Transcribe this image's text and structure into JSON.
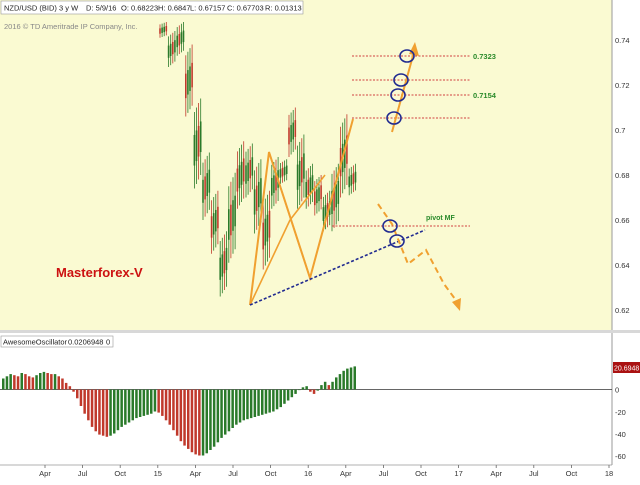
{
  "header": {
    "symbol": "NZD/USD (BID) 3 y W",
    "date": "D: 5/9/16",
    "open": "O: 0.68223",
    "high": "H: 0.6847",
    "low": "L: 0.67157",
    "close": "C: 0.67703",
    "range": "R: 0.01313",
    "copyright": "2016 © TD Ameritrade IP Company, Inc."
  },
  "annotations": {
    "watermark": "Masterforex-V",
    "pivot_label": "pivot MF",
    "target_1": "0.7323",
    "target_2": "0.7154"
  },
  "oscillator_header": {
    "name": "AwesomeOscillator",
    "value": "0.0206948",
    "zero": "0",
    "current_tag": "20.6948"
  },
  "colors": {
    "price_panel_bg": "#fafad2",
    "up_bar": "#2a7a2a",
    "down_bar": "#c0392b",
    "zigzag": "#f0a030",
    "trendline": "#202a90",
    "level_line": "#d04040",
    "level_label": "#2a8a2a",
    "watermark": "#cc1111",
    "value_tag": "#aa1111"
  },
  "chart_data": [
    {
      "type": "candlestick",
      "title": "NZD/USD (BID) 3 y W",
      "x_ticks": [
        "Apr",
        "Jul",
        "Oct",
        "15",
        "Apr",
        "Jul",
        "Oct",
        "16",
        "Apr",
        "Jul",
        "Oct",
        "17",
        "Apr",
        "Jul",
        "Oct",
        "18"
      ],
      "y_ticks": [
        "0.74",
        "0.72",
        "0.7",
        "0.68",
        "0.66",
        "0.64",
        "0.62"
      ],
      "ylim": [
        0.61,
        0.745
      ],
      "grid": false,
      "series": [
        {
          "name": "",
          "lows": [
            0.741,
            0.728,
            0.733,
            0.706,
            0.674,
            0.66,
            0.645,
            0.626,
            0.641,
            0.665,
            0.67,
            0.654,
            0.638,
            0.665,
            0.676,
            0.688,
            0.665,
            0.665,
            0.662,
            0.655,
            0.655,
            0.67,
            0.671
          ],
          "highs": [
            0.748,
            0.744,
            0.748,
            0.738,
            0.714,
            0.69,
            0.673,
            0.655,
            0.681,
            0.695,
            0.694,
            0.687,
            0.673,
            0.688,
            0.687,
            0.71,
            0.698,
            0.685,
            0.68,
            0.673,
            0.685,
            0.707,
            0.685
          ],
          "note": "weekly OHLC values aggregated per visible cluster (approximate)"
        }
      ],
      "annotations": {
        "target_levels": [
          0.7323,
          0.7154
        ],
        "extra_levels": [
          0.722,
          0.705
        ],
        "pivot_mf_level": 0.657
      }
    },
    {
      "type": "bar",
      "title": "AwesomeOscillator",
      "y_ticks": [
        "20.6948",
        "0",
        "-20",
        "-40",
        "-60"
      ],
      "ylim": [
        -67,
        27
      ],
      "last_value": 20.6948,
      "series": [
        {
          "name": "",
          "values": [
            10,
            12,
            14,
            13,
            12,
            15,
            14,
            12,
            11,
            13,
            15,
            16,
            15,
            14,
            14,
            12,
            10,
            6,
            3,
            -2,
            -8,
            -15,
            -22,
            -28,
            -34,
            -38,
            -41,
            -42,
            -43,
            -42,
            -40,
            -37,
            -34,
            -32,
            -30,
            -28,
            -26,
            -25,
            -24,
            -23,
            -22,
            -20,
            -21,
            -24,
            -28,
            -32,
            -37,
            -42,
            -47,
            -51,
            -54,
            -57,
            -59,
            -60,
            -60,
            -58,
            -55,
            -52,
            -48,
            -44,
            -41,
            -38,
            -35,
            -32,
            -30,
            -28,
            -27,
            -26,
            -25,
            -24,
            -23,
            -22,
            -21,
            -20,
            -18,
            -16,
            -13,
            -10,
            -7,
            -4,
            0,
            2,
            3,
            -2,
            -4,
            -1,
            4,
            7,
            4,
            7,
            11,
            14,
            17,
            19,
            20,
            21
          ]
        }
      ]
    }
  ]
}
